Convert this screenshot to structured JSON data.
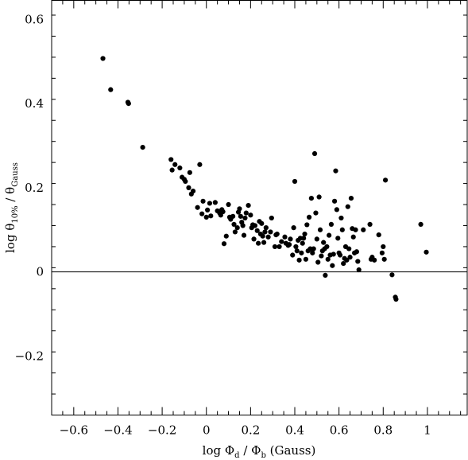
{
  "chart_data": {
    "type": "scatter",
    "xlabel": {
      "main": "log Φ",
      "sub1": "d",
      "mid": " / Φ",
      "sub2": "b",
      "tail": " (Gauss)"
    },
    "ylabel": {
      "main": "log θ",
      "sub1": "10%",
      "mid": " / θ",
      "sub2": "Gauss"
    },
    "xlim": [
      -0.7,
      1.18
    ],
    "ylim": [
      -0.34,
      0.645
    ],
    "xticks": [
      -0.6,
      -0.4,
      -0.2,
      0,
      0.2,
      0.4,
      0.6,
      0.8,
      1
    ],
    "xtick_labels": [
      "−0.6",
      "−0.4",
      "−0.2",
      "0",
      "0.2",
      "0.4",
      "0.6",
      "0.8",
      "1"
    ],
    "yticks": [
      -0.2,
      0,
      0.2,
      0.4,
      0.6
    ],
    "ytick_labels": [
      "−0.2",
      "0",
      "0.2",
      "0.4",
      "0.6"
    ],
    "reference_line_y": 0,
    "grid": false,
    "points": [
      [
        -0.468,
        0.507
      ],
      [
        -0.433,
        0.433
      ],
      [
        -0.355,
        0.403
      ],
      [
        -0.352,
        0.4
      ],
      [
        -0.288,
        0.296
      ],
      [
        -0.16,
        0.267
      ],
      [
        -0.155,
        0.242
      ],
      [
        -0.142,
        0.255
      ],
      [
        -0.12,
        0.247
      ],
      [
        -0.11,
        0.225
      ],
      [
        -0.1,
        0.22
      ],
      [
        -0.095,
        0.215
      ],
      [
        -0.08,
        0.2
      ],
      [
        -0.075,
        0.236
      ],
      [
        -0.068,
        0.185
      ],
      [
        -0.06,
        0.192
      ],
      [
        -0.04,
        0.153
      ],
      [
        -0.03,
        0.255
      ],
      [
        -0.02,
        0.138
      ],
      [
        -0.015,
        0.168
      ],
      [
        0.0,
        0.13
      ],
      [
        0.005,
        0.147
      ],
      [
        0.015,
        0.163
      ],
      [
        0.02,
        0.133
      ],
      [
        0.04,
        0.165
      ],
      [
        0.05,
        0.145
      ],
      [
        0.06,
        0.14
      ],
      [
        0.065,
        0.135
      ],
      [
        0.07,
        0.148
      ],
      [
        0.075,
        0.143
      ],
      [
        0.08,
        0.067
      ],
      [
        0.09,
        0.085
      ],
      [
        0.1,
        0.16
      ],
      [
        0.105,
        0.13
      ],
      [
        0.11,
        0.125
      ],
      [
        0.12,
        0.132
      ],
      [
        0.125,
        0.113
      ],
      [
        0.13,
        0.095
      ],
      [
        0.14,
        0.105
      ],
      [
        0.145,
        0.142
      ],
      [
        0.15,
        0.15
      ],
      [
        0.155,
        0.132
      ],
      [
        0.16,
        0.118
      ],
      [
        0.165,
        0.11
      ],
      [
        0.17,
        0.087
      ],
      [
        0.175,
        0.128
      ],
      [
        0.18,
        0.14
      ],
      [
        0.19,
        0.158
      ],
      [
        0.2,
        0.135
      ],
      [
        0.205,
        0.105
      ],
      [
        0.21,
        0.112
      ],
      [
        0.215,
        0.078
      ],
      [
        0.22,
        0.11
      ],
      [
        0.23,
        0.098
      ],
      [
        0.235,
        0.068
      ],
      [
        0.24,
        0.12
      ],
      [
        0.245,
        0.09
      ],
      [
        0.25,
        0.115
      ],
      [
        0.255,
        0.085
      ],
      [
        0.26,
        0.07
      ],
      [
        0.265,
        0.095
      ],
      [
        0.27,
        0.105
      ],
      [
        0.28,
        0.083
      ],
      [
        0.29,
        0.095
      ],
      [
        0.295,
        0.128
      ],
      [
        0.31,
        0.06
      ],
      [
        0.315,
        0.088
      ],
      [
        0.32,
        0.09
      ],
      [
        0.33,
        0.06
      ],
      [
        0.34,
        0.072
      ],
      [
        0.355,
        0.083
      ],
      [
        0.36,
        0.068
      ],
      [
        0.37,
        0.063
      ],
      [
        0.375,
        0.065
      ],
      [
        0.38,
        0.078
      ],
      [
        0.39,
        0.04
      ],
      [
        0.395,
        0.105
      ],
      [
        0.4,
        0.215
      ],
      [
        0.405,
        0.06
      ],
      [
        0.41,
        0.05
      ],
      [
        0.415,
        0.075
      ],
      [
        0.42,
        0.028
      ],
      [
        0.425,
        0.08
      ],
      [
        0.43,
        0.045
      ],
      [
        0.435,
        0.068
      ],
      [
        0.44,
        0.08
      ],
      [
        0.445,
        0.09
      ],
      [
        0.45,
        0.03
      ],
      [
        0.455,
        0.112
      ],
      [
        0.46,
        0.05
      ],
      [
        0.465,
        0.13
      ],
      [
        0.47,
        0.055
      ],
      [
        0.475,
        0.175
      ],
      [
        0.48,
        0.045
      ],
      [
        0.485,
        0.055
      ],
      [
        0.49,
        0.281
      ],
      [
        0.495,
        0.14
      ],
      [
        0.5,
        0.078
      ],
      [
        0.505,
        0.023
      ],
      [
        0.51,
        0.178
      ],
      [
        0.515,
        0.1
      ],
      [
        0.52,
        0.038
      ],
      [
        0.525,
        0.05
      ],
      [
        0.53,
        0.07
      ],
      [
        0.535,
        0.055
      ],
      [
        0.538,
        -0.008
      ],
      [
        0.545,
        0.06
      ],
      [
        0.55,
        0.03
      ],
      [
        0.555,
        0.087
      ],
      [
        0.56,
        0.04
      ],
      [
        0.565,
        0.113
      ],
      [
        0.57,
        0.015
      ],
      [
        0.575,
        0.042
      ],
      [
        0.58,
        0.168
      ],
      [
        0.585,
        0.24
      ],
      [
        0.59,
        0.148
      ],
      [
        0.595,
        0.08
      ],
      [
        0.6,
        0.045
      ],
      [
        0.605,
        0.04
      ],
      [
        0.61,
        0.128
      ],
      [
        0.615,
        0.1
      ],
      [
        0.62,
        0.02
      ],
      [
        0.625,
        0.032
      ],
      [
        0.63,
        0.06
      ],
      [
        0.635,
        0.028
      ],
      [
        0.64,
        0.155
      ],
      [
        0.645,
        0.055
      ],
      [
        0.65,
        0.035
      ],
      [
        0.655,
        0.175
      ],
      [
        0.66,
        0.103
      ],
      [
        0.665,
        0.083
      ],
      [
        0.67,
        0.045
      ],
      [
        0.675,
        0.1
      ],
      [
        0.68,
        0.048
      ],
      [
        0.685,
        0.025
      ],
      [
        0.69,
        0.005
      ],
      [
        0.71,
        0.1
      ],
      [
        0.74,
        0.113
      ],
      [
        0.745,
        0.03
      ],
      [
        0.75,
        0.035
      ],
      [
        0.76,
        0.028
      ],
      [
        0.78,
        0.088
      ],
      [
        0.795,
        0.045
      ],
      [
        0.8,
        0.06
      ],
      [
        0.805,
        0.03
      ],
      [
        0.81,
        0.218
      ],
      [
        0.84,
        -0.007
      ],
      [
        0.855,
        -0.06
      ],
      [
        0.858,
        -0.065
      ],
      [
        0.97,
        0.113
      ],
      [
        0.995,
        0.047
      ]
    ]
  }
}
